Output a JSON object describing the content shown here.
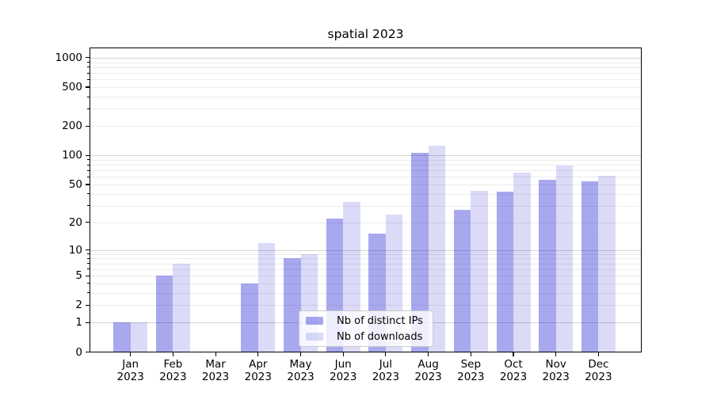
{
  "title": "spatial 2023",
  "chart_data": {
    "type": "bar",
    "title": "spatial 2023",
    "categories": [
      "Jan",
      "Feb",
      "Mar",
      "Apr",
      "May",
      "Jun",
      "Jul",
      "Aug",
      "Sep",
      "Oct",
      "Nov",
      "Dec"
    ],
    "year": "2023",
    "series": [
      {
        "name": "Nb of distinct IPs",
        "color": "rgba(0,0,204,0.34)",
        "values": [
          1,
          5,
          0,
          4,
          8,
          22,
          15,
          107,
          27,
          42,
          56,
          54
        ]
      },
      {
        "name": "Nb of downloads",
        "color": "rgba(0,0,204,0.14)",
        "values": [
          1,
          7,
          0,
          12,
          9,
          33,
          24,
          126,
          43,
          66,
          78,
          62
        ]
      }
    ],
    "yscale": "log1p",
    "ytick_values": [
      0,
      1,
      2,
      5,
      10,
      20,
      50,
      100,
      200,
      500,
      1000
    ],
    "ytick_labels": [
      "0",
      "1",
      "2",
      "5",
      "10",
      "20",
      "50",
      "100",
      "200",
      "500",
      "1000"
    ],
    "ylim": [
      0,
      1270
    ],
    "grid": true,
    "legend_position": "lower center",
    "colors": {
      "major_grid": "#d3d3d3",
      "minor_grid": "#ececec",
      "spine": "#000000",
      "text": "#000000",
      "background": "#ffffff"
    }
  }
}
